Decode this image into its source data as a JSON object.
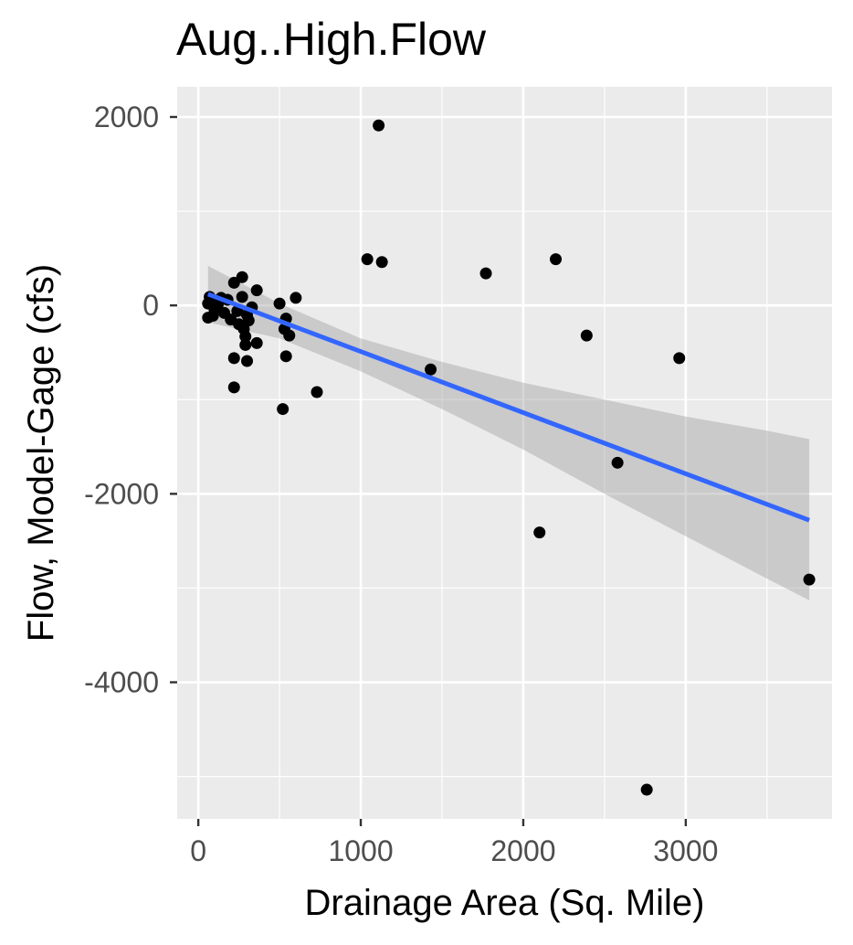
{
  "chart_data": {
    "type": "scatter",
    "title": "Aug..High.Flow",
    "xlabel": "Drainage Area (Sq. Mile)",
    "ylabel": "Flow, Model-Gage (cfs)",
    "xlim": [
      -130,
      3900
    ],
    "ylim": [
      -5450,
      2320
    ],
    "x_ticks": [
      0,
      1000,
      2000,
      3000
    ],
    "x_tick_labels": [
      "0",
      "1000",
      "2000",
      "3000"
    ],
    "y_ticks": [
      2000,
      0,
      -2000,
      -4000
    ],
    "y_tick_labels": [
      "2000",
      "0",
      "-2000",
      "-4000"
    ],
    "grid": true,
    "background": "#ebebeb",
    "point_color": "#000000",
    "fit_line_color": "#3366ff",
    "confidence_band_color": "#999999",
    "points": [
      {
        "x": 1110,
        "y": 1910
      },
      {
        "x": 1040,
        "y": 490
      },
      {
        "x": 1130,
        "y": 460
      },
      {
        "x": 1770,
        "y": 340
      },
      {
        "x": 2200,
        "y": 490
      },
      {
        "x": 2390,
        "y": -320
      },
      {
        "x": 2960,
        "y": -560
      },
      {
        "x": 1430,
        "y": -680
      },
      {
        "x": 2580,
        "y": -1670
      },
      {
        "x": 2100,
        "y": -2410
      },
      {
        "x": 3760,
        "y": -2910
      },
      {
        "x": 2760,
        "y": -5140
      },
      {
        "x": 730,
        "y": -920
      },
      {
        "x": 520,
        "y": -1100
      },
      {
        "x": 600,
        "y": 80
      },
      {
        "x": 500,
        "y": 20
      },
      {
        "x": 540,
        "y": -140
      },
      {
        "x": 560,
        "y": -320
      },
      {
        "x": 540,
        "y": -540
      },
      {
        "x": 530,
        "y": -250
      },
      {
        "x": 360,
        "y": 160
      },
      {
        "x": 360,
        "y": -400
      },
      {
        "x": 290,
        "y": -420
      },
      {
        "x": 300,
        "y": -590
      },
      {
        "x": 290,
        "y": -330
      },
      {
        "x": 270,
        "y": 300
      },
      {
        "x": 270,
        "y": 90
      },
      {
        "x": 220,
        "y": 240
      },
      {
        "x": 220,
        "y": -560
      },
      {
        "x": 220,
        "y": -870
      },
      {
        "x": 200,
        "y": -150
      },
      {
        "x": 180,
        "y": 60
      },
      {
        "x": 160,
        "y": -80
      },
      {
        "x": 140,
        "y": 80
      },
      {
        "x": 120,
        "y": 10
      },
      {
        "x": 100,
        "y": -40
      },
      {
        "x": 90,
        "y": -110
      },
      {
        "x": 70,
        "y": 90
      },
      {
        "x": 60,
        "y": -130
      },
      {
        "x": 60,
        "y": 20
      },
      {
        "x": 250,
        "y": -200
      },
      {
        "x": 300,
        "y": -100
      },
      {
        "x": 330,
        "y": -20
      },
      {
        "x": 240,
        "y": -60
      },
      {
        "x": 280,
        "y": -250
      },
      {
        "x": 310,
        "y": -160
      }
    ],
    "fit_line": [
      {
        "x": 60,
        "y": 120
      },
      {
        "x": 3760,
        "y": -2280
      }
    ],
    "confidence_band": [
      {
        "x": 60,
        "lower": -180,
        "upper": 420
      },
      {
        "x": 500,
        "lower": -350,
        "upper": 20
      },
      {
        "x": 1000,
        "lower": -700,
        "upper": -350
      },
      {
        "x": 1500,
        "lower": -1100,
        "upper": -600
      },
      {
        "x": 2000,
        "lower": -1530,
        "upper": -820
      },
      {
        "x": 2500,
        "lower": -2000,
        "upper": -1000
      },
      {
        "x": 3000,
        "lower": -2450,
        "upper": -1180
      },
      {
        "x": 3500,
        "lower": -2900,
        "upper": -1330
      },
      {
        "x": 3760,
        "lower": -3130,
        "upper": -1420
      }
    ]
  }
}
